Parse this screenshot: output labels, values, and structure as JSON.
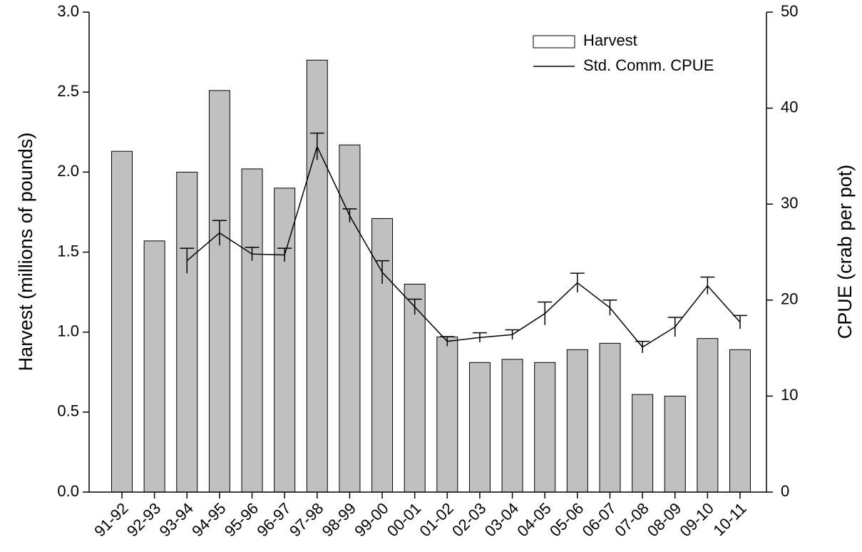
{
  "chart_data": {
    "type": "bar",
    "categories": [
      "91-92",
      "92-93",
      "93-94",
      "94-95",
      "95-96",
      "96-97",
      "97-98",
      "98-99",
      "99-00",
      "00-01",
      "01-02",
      "02-03",
      "03-04",
      "04-05",
      "05-06",
      "06-07",
      "07-08",
      "08-09",
      "09-10",
      "10-11"
    ],
    "series": [
      {
        "name": "Harvest",
        "type": "bar",
        "color": "#c0c0c0",
        "values": [
          2.13,
          1.57,
          2.0,
          2.51,
          2.02,
          1.9,
          2.7,
          2.17,
          1.71,
          1.3,
          0.97,
          0.81,
          0.83,
          0.81,
          0.89,
          0.93,
          0.61,
          0.6,
          0.96,
          0.89
        ]
      },
      {
        "name": "Std. Comm. CPUE",
        "type": "line",
        "axis": "y2",
        "color": "#000000",
        "values": [
          null,
          null,
          24.1,
          27.0,
          24.8,
          24.7,
          36.0,
          28.8,
          22.9,
          19.3,
          15.7,
          16.1,
          16.4,
          18.6,
          21.8,
          19.2,
          15.1,
          17.2,
          21.5,
          17.7
        ],
        "errors": [
          null,
          null,
          1.3,
          1.3,
          0.7,
          0.7,
          1.4,
          0.7,
          1.2,
          0.8,
          0.5,
          0.5,
          0.5,
          1.2,
          1.0,
          0.8,
          0.6,
          1.0,
          0.9,
          0.7
        ]
      }
    ],
    "y_label": "Harvest (millions of pounds)",
    "y2_label": "CPUE (crab per pot)",
    "ylim": [
      0,
      3
    ],
    "yticks": [
      {
        "value": 0,
        "label": "0.0"
      },
      {
        "value": 0.5,
        "label": "0.5"
      },
      {
        "value": 1,
        "label": "1.0"
      },
      {
        "value": 1.5,
        "label": "1.5"
      },
      {
        "value": 2,
        "label": "2.0"
      },
      {
        "value": 2.5,
        "label": "2.5"
      },
      {
        "value": 3,
        "label": "3.0"
      }
    ],
    "y2lim": [
      0,
      50
    ],
    "y2ticks": [
      0,
      10,
      20,
      30,
      40,
      50
    ],
    "legend": "upper right"
  }
}
